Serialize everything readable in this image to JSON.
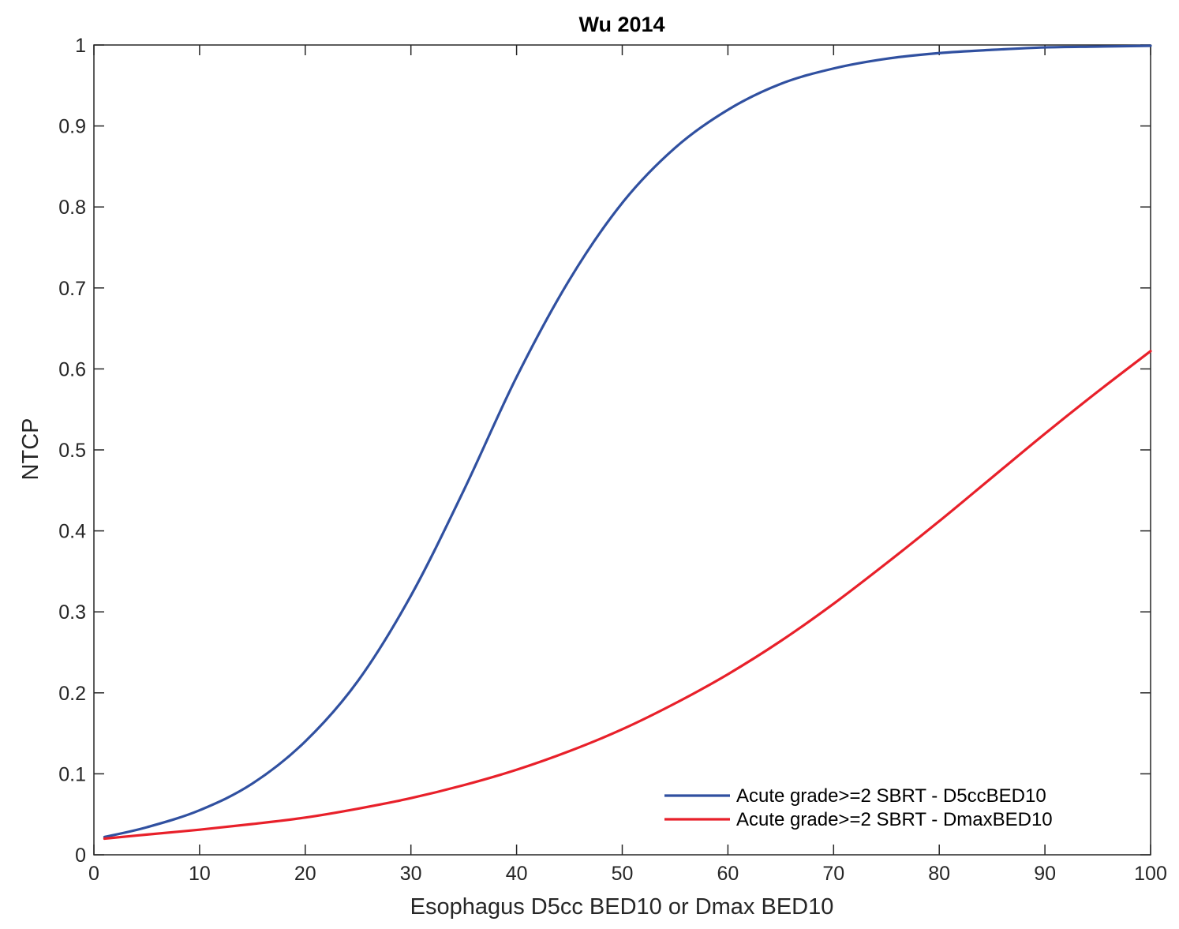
{
  "chart_data": {
    "type": "line",
    "title": "Wu 2014",
    "xlabel": "Esophagus D5cc BED10 or Dmax BED10",
    "ylabel": "NTCP",
    "xlim": [
      0,
      100
    ],
    "ylim": [
      0,
      1
    ],
    "x_ticks": [
      0,
      10,
      20,
      30,
      40,
      50,
      60,
      70,
      80,
      90,
      100
    ],
    "x_tick_labels": [
      "0",
      "10",
      "20",
      "30",
      "40",
      "50",
      "60",
      "70",
      "80",
      "90",
      "100"
    ],
    "y_ticks": [
      0,
      0.1,
      0.2,
      0.3,
      0.4,
      0.5,
      0.6,
      0.7,
      0.8,
      0.9,
      1
    ],
    "y_tick_labels": [
      "0",
      "0.1",
      "0.2",
      "0.3",
      "0.4",
      "0.5",
      "0.6",
      "0.7",
      "0.8",
      "0.9",
      "1"
    ],
    "grid": false,
    "legend_position": "bottom-right",
    "series": [
      {
        "name": "Acute grade>=2 SBRT - D5ccBED10",
        "color": "#3050a0",
        "x": [
          1,
          5,
          10,
          15,
          20,
          25,
          30,
          35,
          40,
          45,
          50,
          55,
          60,
          65,
          70,
          75,
          80,
          85,
          90,
          95,
          100
        ],
        "y": [
          0.022,
          0.034,
          0.055,
          0.088,
          0.14,
          0.215,
          0.32,
          0.45,
          0.59,
          0.71,
          0.805,
          0.873,
          0.92,
          0.952,
          0.971,
          0.983,
          0.99,
          0.994,
          0.997,
          0.998,
          0.999
        ]
      },
      {
        "name": "Acute grade>=2 SBRT - DmaxBED10",
        "color": "#e8202a",
        "x": [
          1,
          5,
          10,
          15,
          20,
          25,
          30,
          35,
          40,
          45,
          50,
          55,
          60,
          65,
          70,
          75,
          80,
          85,
          90,
          95,
          100
        ],
        "y": [
          0.02,
          0.025,
          0.031,
          0.038,
          0.046,
          0.057,
          0.07,
          0.086,
          0.105,
          0.128,
          0.155,
          0.187,
          0.223,
          0.264,
          0.31,
          0.36,
          0.412,
          0.466,
          0.52,
          0.572,
          0.622
        ]
      }
    ]
  }
}
